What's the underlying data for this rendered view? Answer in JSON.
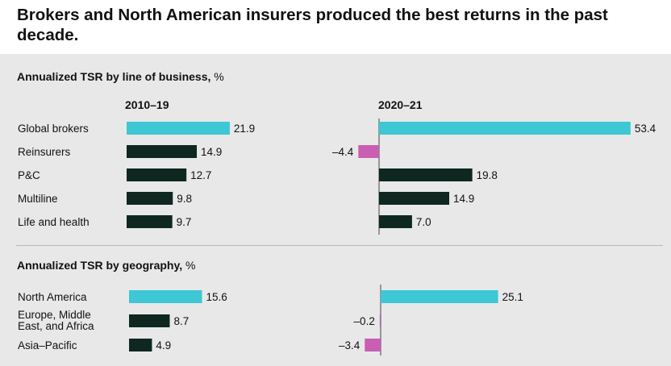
{
  "title": "Brokers and North American insurers produced the best returns in the past decade.",
  "colors": {
    "highlight": "#3ec7d4",
    "negative": "#c85fb3",
    "default": "#0e2721",
    "panel": "#e8e8e8"
  },
  "chart_data": [
    {
      "type": "bar",
      "section_title": "Annualized TSR by line of business,",
      "unit": "%",
      "categories": [
        "Global brokers",
        "Reinsurers",
        "P&C",
        "Multiline",
        "Life and health"
      ],
      "series": [
        {
          "name": "2010–19",
          "values": [
            21.9,
            14.9,
            12.7,
            9.8,
            9.7
          ],
          "labels": [
            "21.9",
            "14.9",
            "12.7",
            "9.8",
            "9.7"
          ]
        },
        {
          "name": "2020–21",
          "values": [
            53.4,
            -4.4,
            19.8,
            14.9,
            7.0
          ],
          "labels": [
            "53.4",
            "–4.4",
            "19.8",
            "14.9",
            "7.0"
          ]
        }
      ],
      "highlight_index": 0
    },
    {
      "type": "bar",
      "section_title": "Annualized TSR by geography,",
      "unit": "%",
      "categories": [
        "North America",
        "Europe, Middle East, and Africa",
        "Asia–Pacific"
      ],
      "series": [
        {
          "name": "2010–19",
          "values": [
            15.6,
            8.7,
            4.9
          ],
          "labels": [
            "15.6",
            "8.7",
            "4.9"
          ]
        },
        {
          "name": "2020–21",
          "values": [
            25.1,
            -0.2,
            -3.4
          ],
          "labels": [
            "25.1",
            "–0.2",
            "–3.4"
          ]
        }
      ],
      "highlight_index": 0
    }
  ]
}
